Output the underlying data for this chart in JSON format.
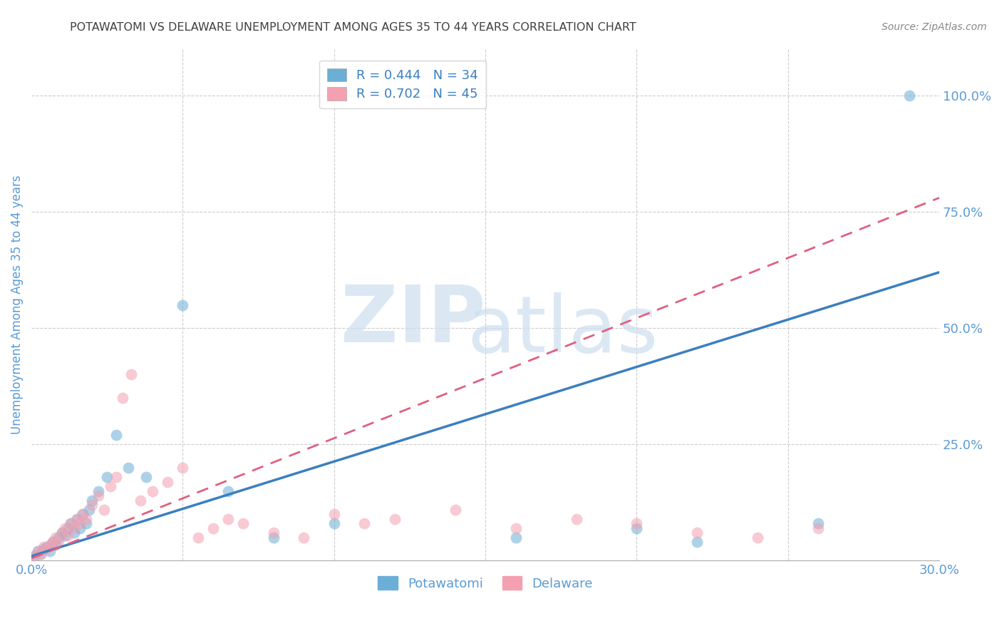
{
  "title": "POTAWATOMI VS DELAWARE UNEMPLOYMENT AMONG AGES 35 TO 44 YEARS CORRELATION CHART",
  "source": "Source: ZipAtlas.com",
  "xlabel": "",
  "ylabel": "Unemployment Among Ages 35 to 44 years",
  "xmin": 0.0,
  "xmax": 0.3,
  "ymin": 0.0,
  "ymax": 1.1,
  "xticks": [
    0.0,
    0.05,
    0.1,
    0.15,
    0.2,
    0.25,
    0.3
  ],
  "ytick_right": [
    0.25,
    0.5,
    0.75,
    1.0
  ],
  "ytick_right_labels": [
    "25.0%",
    "50.0%",
    "75.0%",
    "100.0%"
  ],
  "potawatomi_R": 0.444,
  "potawatomi_N": 34,
  "delaware_R": 0.702,
  "delaware_N": 45,
  "potawatomi_color": "#6baed6",
  "delaware_color": "#f4a0b0",
  "potawatomi_line_color": "#3a7fc1",
  "delaware_line_color": "#e06080",
  "title_color": "#404040",
  "axis_label_color": "#5b9bd5",
  "tick_label_color": "#5b9bd5",
  "grid_color": "#cccccc",
  "background_color": "#ffffff",
  "legend_potawatomi": "Potawatomi",
  "legend_delaware": "Delaware",
  "potawatomi_x": [
    0.001,
    0.002,
    0.003,
    0.004,
    0.005,
    0.006,
    0.007,
    0.008,
    0.009,
    0.01,
    0.011,
    0.012,
    0.013,
    0.014,
    0.015,
    0.016,
    0.017,
    0.018,
    0.019,
    0.02,
    0.022,
    0.025,
    0.028,
    0.032,
    0.038,
    0.05,
    0.065,
    0.08,
    0.1,
    0.16,
    0.2,
    0.22,
    0.26,
    0.29
  ],
  "potawatomi_y": [
    0.01,
    0.02,
    0.015,
    0.025,
    0.03,
    0.02,
    0.04,
    0.035,
    0.05,
    0.06,
    0.055,
    0.07,
    0.08,
    0.06,
    0.09,
    0.07,
    0.1,
    0.08,
    0.11,
    0.13,
    0.15,
    0.18,
    0.27,
    0.2,
    0.18,
    0.55,
    0.15,
    0.05,
    0.08,
    0.05,
    0.07,
    0.04,
    0.08,
    1.0
  ],
  "delaware_x": [
    0.001,
    0.002,
    0.003,
    0.004,
    0.005,
    0.006,
    0.007,
    0.008,
    0.009,
    0.01,
    0.011,
    0.012,
    0.013,
    0.014,
    0.015,
    0.016,
    0.017,
    0.018,
    0.02,
    0.022,
    0.024,
    0.026,
    0.028,
    0.03,
    0.033,
    0.036,
    0.04,
    0.045,
    0.05,
    0.055,
    0.06,
    0.065,
    0.07,
    0.08,
    0.09,
    0.1,
    0.11,
    0.12,
    0.14,
    0.16,
    0.18,
    0.2,
    0.22,
    0.24,
    0.26
  ],
  "delaware_y": [
    0.01,
    0.02,
    0.015,
    0.03,
    0.025,
    0.035,
    0.04,
    0.05,
    0.04,
    0.06,
    0.07,
    0.055,
    0.08,
    0.07,
    0.09,
    0.08,
    0.1,
    0.09,
    0.12,
    0.14,
    0.11,
    0.16,
    0.18,
    0.35,
    0.4,
    0.13,
    0.15,
    0.17,
    0.2,
    0.05,
    0.07,
    0.09,
    0.08,
    0.06,
    0.05,
    0.1,
    0.08,
    0.09,
    0.11,
    0.07,
    0.09,
    0.08,
    0.06,
    0.05,
    0.07
  ],
  "pot_trendline_x0": 0.0,
  "pot_trendline_y0": 0.01,
  "pot_trendline_x1": 0.3,
  "pot_trendline_y1": 0.62,
  "del_trendline_x0": 0.0,
  "del_trendline_y0": 0.005,
  "del_trendline_x1": 0.3,
  "del_trendline_y1": 0.78
}
